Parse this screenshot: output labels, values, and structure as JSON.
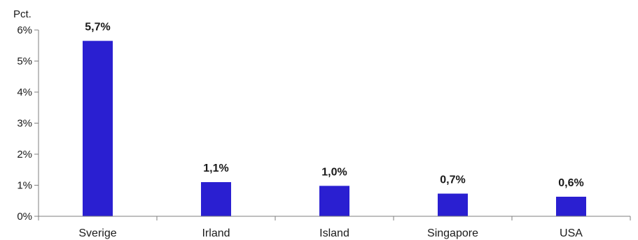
{
  "chart_data": {
    "type": "bar",
    "unit_label": "Pct.",
    "categories": [
      "Sverige",
      "Irland",
      "Island",
      "Singapore",
      "USA"
    ],
    "values": [
      5.65,
      1.1,
      0.98,
      0.73,
      0.63
    ],
    "data_labels": [
      "5,7%",
      "1,1%",
      "1,0%",
      "0,7%",
      "0,6%"
    ],
    "yticks": [
      0,
      1,
      2,
      3,
      4,
      5,
      6
    ],
    "ytick_labels": [
      "0%",
      "1%",
      "2%",
      "3%",
      "4%",
      "5%",
      "6%"
    ],
    "ylim": [
      0,
      6
    ],
    "grid": false,
    "bar_color": "#2a1fd1"
  }
}
